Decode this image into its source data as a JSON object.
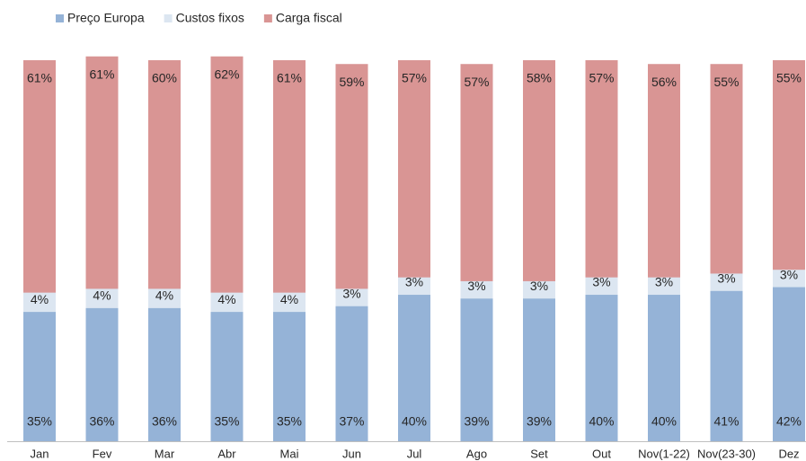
{
  "chart_data": {
    "type": "stacked-bar",
    "categories": [
      "Jan",
      "Fev",
      "Mar",
      "Abr",
      "Mai",
      "Jun",
      "Jul",
      "Ago",
      "Set",
      "Out",
      "Nov(1-22)",
      "Nov(23-30)",
      "Dez"
    ],
    "series": [
      {
        "name": "Preço Europa",
        "color": "#95b3d7",
        "values": [
          35,
          36,
          36,
          35,
          35,
          37,
          40,
          39,
          39,
          40,
          40,
          41,
          42
        ],
        "value_labels": [
          "35%",
          "36%",
          "36%",
          "35%",
          "35%",
          "37%",
          "40%",
          "39%",
          "39%",
          "40%",
          "40%",
          "41%",
          "42%"
        ]
      },
      {
        "name": "Custos fixos",
        "color": "#dce6f1",
        "values": [
          4,
          4,
          4,
          4,
          4,
          3,
          3,
          3,
          3,
          3,
          3,
          3,
          3
        ],
        "value_labels": [
          "4%",
          "4%",
          "4%",
          "4%",
          "4%",
          "3%",
          "3%",
          "3%",
          "3%",
          "3%",
          "3%",
          "3%",
          "3%"
        ]
      },
      {
        "name": "Carga fiscal",
        "color": "#d99594",
        "values": [
          61,
          61,
          60,
          62,
          61,
          59,
          57,
          57,
          58,
          57,
          56,
          55,
          55
        ],
        "value_labels": [
          "61%",
          "61%",
          "60%",
          "62%",
          "61%",
          "59%",
          "57%",
          "57%",
          "58%",
          "57%",
          "56%",
          "55%",
          "55%"
        ]
      }
    ],
    "ylim": [
      0,
      100
    ]
  }
}
